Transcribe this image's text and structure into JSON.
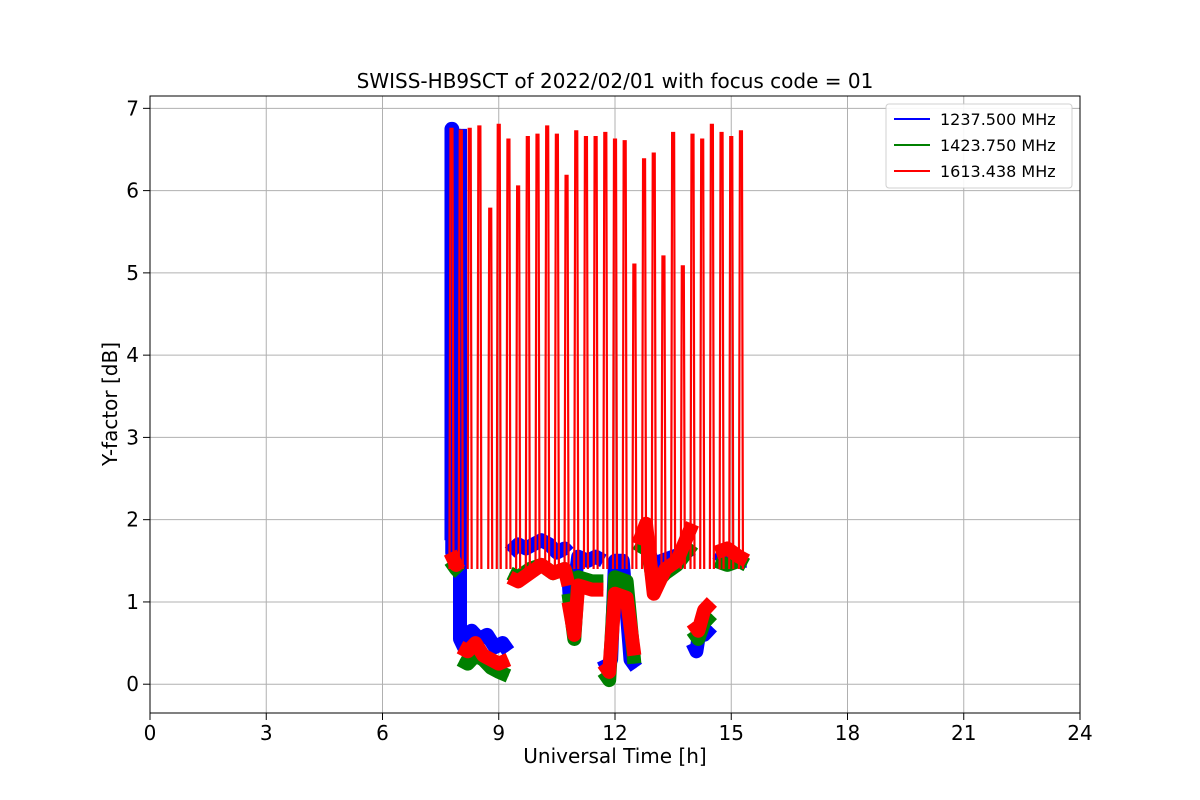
{
  "chart_data": {
    "type": "line",
    "title": "SWISS-HB9SCT of 2022/02/01 with focus code = 01",
    "xlabel": "Universal Time [h]",
    "ylabel": "Y-factor [dB]",
    "xlim": [
      0,
      24
    ],
    "ylim": [
      -0.35,
      7.15
    ],
    "xticks": [
      0,
      3,
      6,
      9,
      12,
      15,
      18,
      21,
      24
    ],
    "yticks": [
      0,
      1,
      2,
      3,
      4,
      5,
      6,
      7
    ],
    "grid": true,
    "legend_position": "top-right",
    "series": [
      {
        "name": "1237.500 MHz",
        "color": "#0000ff",
        "segments": [
          {
            "x": [
              7.75,
              7.78,
              7.78,
              7.8,
              7.8,
              7.9,
              8.0
            ],
            "y": [
              1.75,
              1.75,
              6.75,
              6.75,
              1.6,
              1.85,
              1.75
            ]
          },
          {
            "x": [
              8.0,
              8.0,
              8.1,
              8.3,
              8.5,
              8.7,
              8.9,
              9.1,
              9.25
            ],
            "y": [
              6.75,
              0.55,
              0.45,
              0.65,
              0.55,
              0.6,
              0.45,
              0.5,
              0.4
            ]
          },
          {
            "x": [
              9.28,
              9.5,
              9.7,
              9.9,
              10.1,
              10.3,
              10.5,
              10.7,
              10.8
            ],
            "y": [
              1.6,
              1.7,
              1.65,
              1.7,
              1.75,
              1.7,
              1.6,
              1.65,
              1.6
            ]
          },
          {
            "x": [
              10.8,
              10.85,
              10.95,
              11.05,
              11.3,
              11.5,
              11.7
            ],
            "y": [
              1.3,
              0.9,
              1.2,
              1.55,
              1.5,
              1.55,
              1.5
            ]
          },
          {
            "x": [
              11.7,
              11.8,
              11.9,
              12.0,
              12.2,
              12.4,
              12.55
            ],
            "y": [
              0.3,
              0.2,
              0.3,
              1.5,
              1.5,
              0.3,
              0.2
            ]
          },
          {
            "x": [
              12.6,
              12.8,
              13.0,
              13.2,
              13.5,
              13.8,
              14.0
            ],
            "y": [
              1.65,
              1.7,
              1.45,
              1.5,
              1.55,
              1.6,
              1.65
            ]
          },
          {
            "x": [
              14.0,
              14.1,
              14.2,
              14.3,
              14.5
            ],
            "y": [
              0.5,
              0.4,
              0.7,
              0.6,
              0.7
            ]
          },
          {
            "x": [
              14.6,
              14.8,
              15.0,
              15.2,
              15.4
            ],
            "y": [
              1.6,
              1.55,
              1.55,
              1.5,
              1.5
            ]
          }
        ]
      },
      {
        "name": "1423.750 MHz",
        "color": "#008000",
        "segments": [
          {
            "x": [
              7.75,
              7.9,
              8.0
            ],
            "y": [
              1.5,
              1.4,
              1.35
            ]
          },
          {
            "x": [
              8.0,
              8.2,
              8.4,
              8.6,
              8.8,
              9.0,
              9.25
            ],
            "y": [
              0.3,
              0.25,
              0.35,
              0.3,
              0.2,
              0.15,
              0.1
            ]
          },
          {
            "x": [
              9.28,
              9.5,
              9.8,
              10.1,
              10.4,
              10.7,
              10.8
            ],
            "y": [
              1.35,
              1.3,
              1.4,
              1.45,
              1.35,
              1.4,
              1.3
            ]
          },
          {
            "x": [
              10.8,
              10.95,
              11.05,
              11.4,
              11.7
            ],
            "y": [
              1.1,
              0.55,
              1.3,
              1.25,
              1.25
            ]
          },
          {
            "x": [
              11.7,
              11.85,
              12.0,
              12.3,
              12.5
            ],
            "y": [
              0.15,
              0.05,
              1.3,
              1.25,
              0.25
            ]
          },
          {
            "x": [
              12.6,
              12.8,
              13.0,
              13.3,
              13.6,
              14.0
            ],
            "y": [
              1.6,
              1.75,
              1.2,
              1.35,
              1.45,
              1.7
            ]
          },
          {
            "x": [
              14.0,
              14.15,
              14.3,
              14.5
            ],
            "y": [
              0.65,
              0.55,
              0.75,
              0.85
            ]
          },
          {
            "x": [
              14.6,
              14.9,
              15.2,
              15.4
            ],
            "y": [
              1.5,
              1.45,
              1.5,
              1.45
            ]
          }
        ]
      },
      {
        "name": "1613.438 MHz",
        "color": "#ff0000",
        "peaks": [
          {
            "x": 7.78,
            "y": 6.75
          },
          {
            "x": 8.02,
            "y": 6.73
          },
          {
            "x": 8.25,
            "y": 6.75
          },
          {
            "x": 8.5,
            "y": 6.78
          },
          {
            "x": 8.78,
            "y": 5.78
          },
          {
            "x": 9.0,
            "y": 6.8
          },
          {
            "x": 9.25,
            "y": 6.62
          },
          {
            "x": 9.5,
            "y": 6.05
          },
          {
            "x": 9.75,
            "y": 6.65
          },
          {
            "x": 10.0,
            "y": 6.68
          },
          {
            "x": 10.25,
            "y": 6.78
          },
          {
            "x": 10.5,
            "y": 6.68
          },
          {
            "x": 10.75,
            "y": 6.18
          },
          {
            "x": 11.0,
            "y": 6.72
          },
          {
            "x": 11.25,
            "y": 6.65
          },
          {
            "x": 11.5,
            "y": 6.65
          },
          {
            "x": 11.75,
            "y": 6.7
          },
          {
            "x": 12.0,
            "y": 6.62
          },
          {
            "x": 12.25,
            "y": 6.6
          },
          {
            "x": 12.5,
            "y": 5.1
          },
          {
            "x": 12.75,
            "y": 6.38
          },
          {
            "x": 13.0,
            "y": 6.45
          },
          {
            "x": 13.25,
            "y": 5.2
          },
          {
            "x": 13.5,
            "y": 6.7
          },
          {
            "x": 13.75,
            "y": 5.08
          },
          {
            "x": 14.0,
            "y": 6.68
          },
          {
            "x": 14.25,
            "y": 6.62
          },
          {
            "x": 14.5,
            "y": 6.8
          },
          {
            "x": 14.75,
            "y": 6.7
          },
          {
            "x": 15.0,
            "y": 6.65
          },
          {
            "x": 15.25,
            "y": 6.72
          }
        ],
        "segments": [
          {
            "x": [
              7.75,
              7.9,
              8.0
            ],
            "y": [
              1.6,
              1.45,
              1.5
            ]
          },
          {
            "x": [
              8.0,
              8.2,
              8.4,
              8.6,
              8.8,
              9.0,
              9.25
            ],
            "y": [
              0.45,
              0.4,
              0.5,
              0.35,
              0.3,
              0.25,
              0.3
            ]
          },
          {
            "x": [
              9.28,
              9.5,
              9.8,
              10.1,
              10.4,
              10.7,
              10.8
            ],
            "y": [
              1.3,
              1.25,
              1.35,
              1.45,
              1.35,
              1.4,
              1.2
            ]
          },
          {
            "x": [
              10.8,
              10.95,
              11.05,
              11.4,
              11.7
            ],
            "y": [
              1.0,
              0.6,
              1.2,
              1.15,
              1.15
            ]
          },
          {
            "x": [
              11.7,
              11.85,
              12.0,
              12.3,
              12.5
            ],
            "y": [
              0.25,
              0.15,
              1.1,
              1.05,
              0.35
            ]
          },
          {
            "x": [
              12.6,
              12.8,
              13.0,
              13.3,
              13.6,
              14.0
            ],
            "y": [
              1.7,
              1.95,
              1.1,
              1.4,
              1.5,
              1.95
            ]
          },
          {
            "x": [
              14.0,
              14.15,
              14.3,
              14.5
            ],
            "y": [
              0.75,
              0.65,
              0.9,
              1.0
            ]
          },
          {
            "x": [
              14.6,
              14.9,
              15.2,
              15.4
            ],
            "y": [
              1.6,
              1.65,
              1.55,
              1.5
            ]
          }
        ]
      }
    ]
  }
}
